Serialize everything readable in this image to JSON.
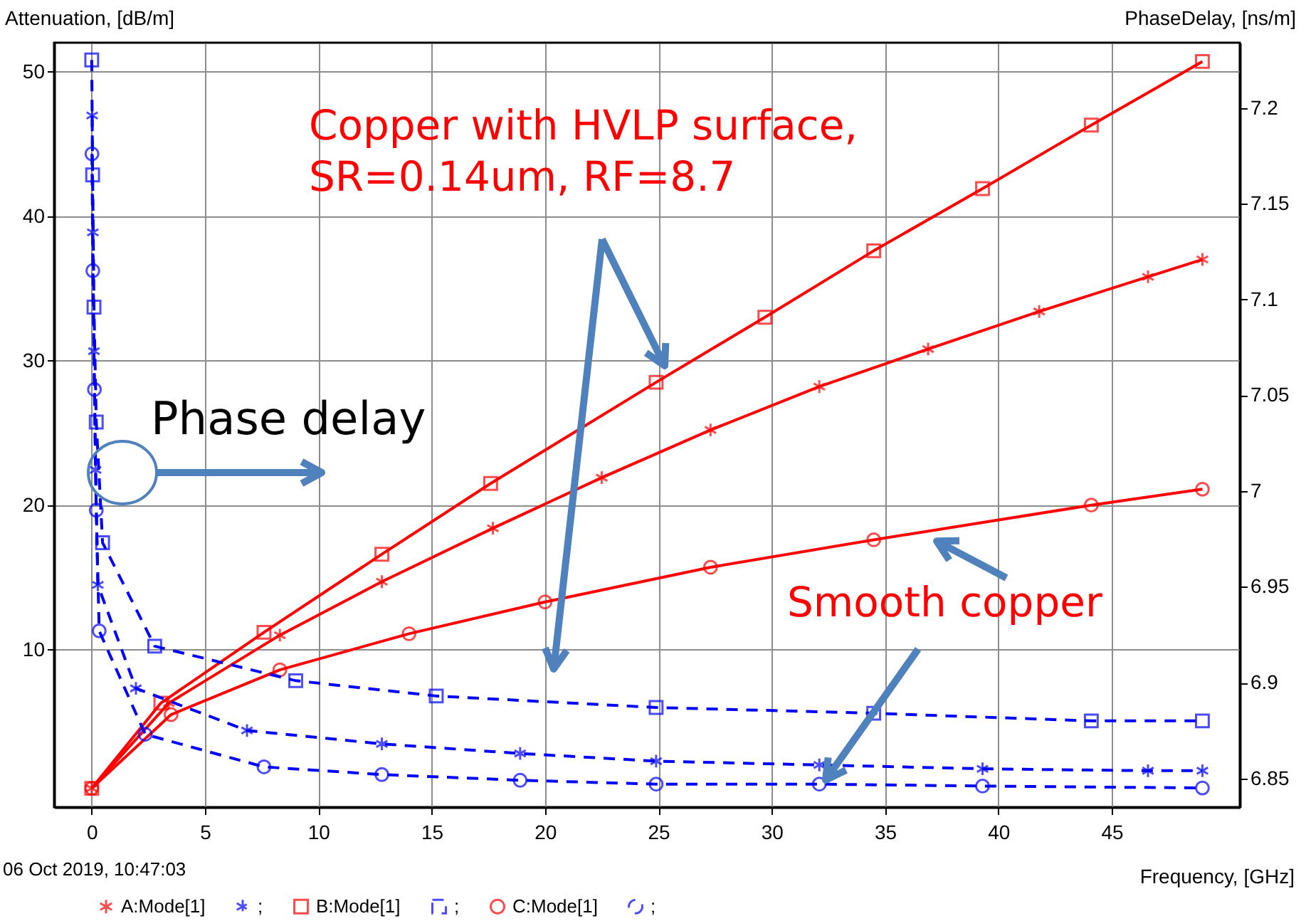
{
  "chart_data": {
    "type": "line",
    "xlabel": "Frequency, [GHz]",
    "ylabel": "Attenuation, [dB/m]",
    "y2label": "PhaseDelay, [ns/m]",
    "xlim": [
      -1.66,
      50.65
    ],
    "xticks": [
      0,
      5,
      10,
      15,
      20,
      25,
      30,
      35,
      40,
      45
    ],
    "ylim": [
      -0.9,
      52.0
    ],
    "yticks": [
      10,
      20,
      30,
      40,
      50
    ],
    "y2lim": [
      6.835,
      7.234
    ],
    "y2ticks": [
      6.85,
      6.9,
      6.95,
      7,
      7.05,
      7.1,
      7.15,
      7.2
    ],
    "grid": true,
    "legend": "bottom",
    "series": [
      {
        "name": "A:Mode[1]",
        "color": "#ff0000",
        "marker": "cross",
        "line_style": "solid",
        "x": [
          0,
          3.4,
          8.3,
          12.8,
          17.7,
          22.5,
          27.3,
          32.1,
          36.9,
          41.8,
          46.6,
          49.0
        ],
        "values": [
          0.4,
          6.3,
          11.0,
          14.7,
          18.4,
          21.9,
          25.2,
          28.2,
          30.8,
          33.4,
          35.8,
          37.0
        ]
      },
      {
        "name": ";",
        "color": "#0000ff",
        "marker": "cross",
        "line_style": "dashed",
        "axis": "y2",
        "x": [
          0.02,
          0.05,
          0.1,
          0.17,
          0.27,
          1.95,
          6.85,
          12.8,
          18.9,
          24.9,
          32.1,
          39.3,
          46.6,
          49.0
        ],
        "values": [
          7.196,
          7.135,
          7.073,
          7.011,
          6.951,
          6.897,
          6.875,
          6.868,
          6.863,
          6.859,
          6.857,
          6.855,
          6.854,
          6.854
        ]
      },
      {
        "name": "B:Mode[1]",
        "color": "#ff0000",
        "marker": "square",
        "line_style": "solid",
        "x": [
          0,
          3.05,
          7.6,
          12.8,
          17.6,
          24.9,
          29.7,
          34.5,
          39.3,
          44.1,
          49.0
        ],
        "values": [
          0.4,
          6.3,
          11.2,
          16.6,
          21.5,
          28.5,
          33.0,
          37.6,
          41.9,
          46.3,
          50.7
        ]
      },
      {
        "name": ";",
        "color": "#0000ff",
        "marker": "square",
        "line_style": "dashed",
        "axis": "y2",
        "x": [
          0,
          0.04,
          0.1,
          0.2,
          0.48,
          2.78,
          9.0,
          15.2,
          24.9,
          34.5,
          44.1,
          49.0
        ],
        "values": [
          7.225,
          7.165,
          7.096,
          7.036,
          6.973,
          6.919,
          6.901,
          6.893,
          6.887,
          6.884,
          6.88,
          6.88
        ]
      },
      {
        "name": "C:Mode[1]",
        "color": "#ff0000",
        "marker": "circle",
        "line_style": "solid",
        "x": [
          0,
          3.5,
          8.3,
          14.0,
          20.0,
          27.3,
          34.5,
          44.1,
          49.0
        ],
        "values": [
          0.4,
          5.5,
          8.6,
          11.1,
          13.3,
          15.7,
          17.6,
          20.0,
          21.1
        ]
      },
      {
        "name": ";",
        "color": "#0000ff",
        "marker": "circle",
        "line_style": "dashed",
        "axis": "y2",
        "x": [
          0.01,
          0.05,
          0.12,
          0.2,
          0.33,
          2.36,
          7.6,
          12.8,
          18.9,
          24.9,
          32.1,
          39.3,
          49.0
        ],
        "values": [
          7.176,
          7.115,
          7.053,
          6.99,
          6.927,
          6.873,
          6.856,
          6.852,
          6.849,
          6.847,
          6.847,
          6.846,
          6.845
        ]
      }
    ],
    "annotations": [
      "Copper with HVLP surface,\nSR=0.14um, RF=8.7",
      "Phase delay",
      {
        "text": "Smooth copper",
        "x": 36.9,
        "y": 17.9
      },
      "06 Oct 2019, 10:47:03"
    ]
  }
}
